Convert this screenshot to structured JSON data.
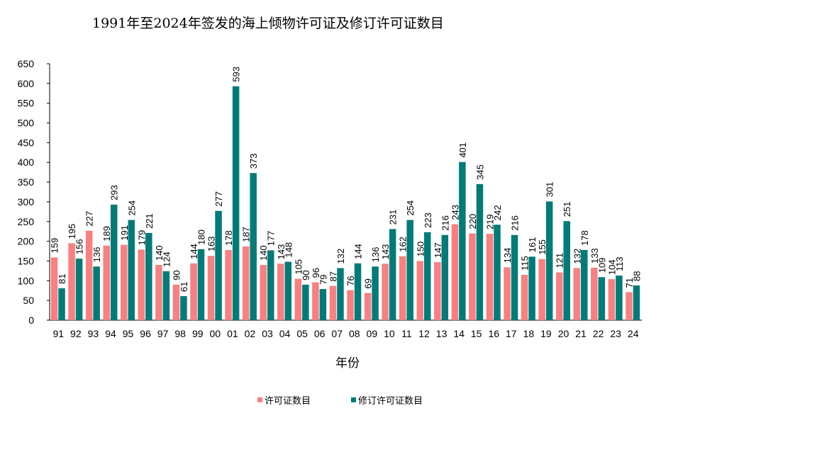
{
  "chart_data": {
    "type": "bar",
    "title": "1991年至2024年签发的海上倾物许可证及修订许可证数目",
    "xlabel": "年份",
    "ylabel": "",
    "ylim": [
      0,
      650
    ],
    "yticks": [
      0,
      50,
      100,
      150,
      200,
      250,
      300,
      350,
      400,
      450,
      500,
      550,
      600,
      650
    ],
    "grid": false,
    "legend_position": "bottom",
    "categories": [
      "91",
      "92",
      "93",
      "94",
      "95",
      "96",
      "97",
      "98",
      "99",
      "00",
      "01",
      "02",
      "03",
      "04",
      "05",
      "06",
      "07",
      "08",
      "09",
      "10",
      "11",
      "12",
      "13",
      "14",
      "15",
      "16",
      "17",
      "18",
      "19",
      "20",
      "21",
      "22",
      "23",
      "24"
    ],
    "series": [
      {
        "name": "许可证数目",
        "color": "#f88080",
        "values": [
          159,
          195,
          227,
          189,
          191,
          179,
          140,
          90,
          144,
          163,
          178,
          187,
          140,
          143,
          105,
          96,
          87,
          76,
          69,
          143,
          162,
          150,
          147,
          243,
          220,
          219,
          134,
          115,
          155,
          121,
          132,
          133,
          104,
          71
        ]
      },
      {
        "name": "修订许可证数目",
        "color": "#007b78",
        "values": [
          81,
          156,
          136,
          293,
          254,
          221,
          124,
          61,
          180,
          277,
          593,
          373,
          177,
          148,
          90,
          79,
          132,
          144,
          136,
          231,
          254,
          223,
          216,
          401,
          345,
          242,
          216,
          161,
          301,
          251,
          178,
          109,
          113,
          88
        ]
      }
    ]
  }
}
